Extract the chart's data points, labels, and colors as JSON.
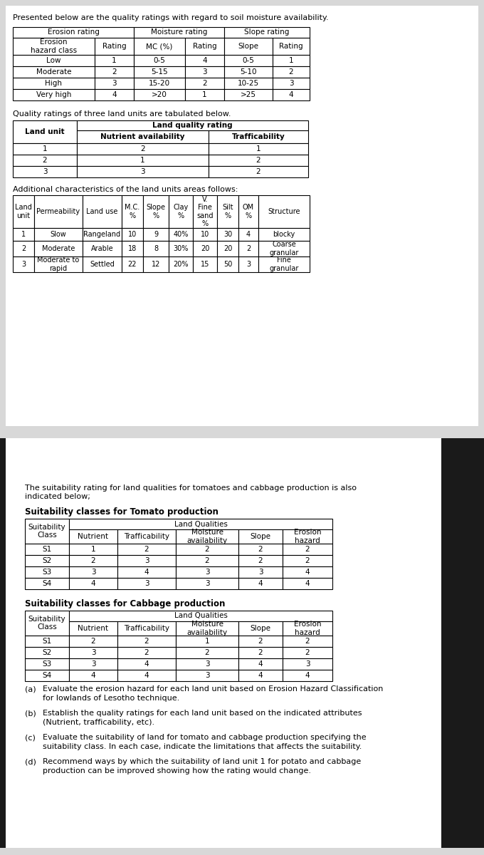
{
  "intro_text": "Presented below are the quality ratings with regard to soil moisture availability.",
  "table1_rows": [
    [
      "Low",
      "1",
      "0-5",
      "4",
      "0-5",
      "1"
    ],
    [
      "Moderate",
      "2",
      "5-15",
      "3",
      "5-10",
      "2"
    ],
    [
      "High",
      "3",
      "15-20",
      "2",
      "10-25",
      "3"
    ],
    [
      "Very high",
      "4",
      ">20",
      "1",
      ">25",
      "4"
    ]
  ],
  "table2_intro": "Quality ratings of three land units are tabulated below.",
  "table2_rows": [
    [
      "1",
      "2",
      "1"
    ],
    [
      "2",
      "1",
      "2"
    ],
    [
      "3",
      "3",
      "2"
    ]
  ],
  "table3_intro": "Additional characteristics of the land units areas follows:",
  "table3_header": [
    "Land\nunit",
    "Permeability",
    "Land use",
    "M.C.\n%",
    "Slope\n%",
    "Clay\n%",
    "V.\nFine\nsand\n%",
    "Silt\n%",
    "OM\n%",
    "Structure"
  ],
  "table3_rows": [
    [
      "1",
      "Slow",
      "Rangeland",
      "10",
      "9",
      "40%",
      "10",
      "30",
      "4",
      "blocky"
    ],
    [
      "2",
      "Moderate",
      "Arable",
      "18",
      "8",
      "30%",
      "20",
      "20",
      "2",
      "Coarse\ngranular"
    ],
    [
      "3",
      "Moderate to\nrapid",
      "Settled",
      "22",
      "12",
      "20%",
      "15",
      "50",
      "3",
      "Fine\ngranular"
    ]
  ],
  "page2_intro": "The suitability rating for land qualities for tomatoes and cabbage production is also\nindicated below;",
  "tomato_title": "Suitability classes for Tomato production",
  "tomato_rows": [
    [
      "S1",
      "1",
      "2",
      "2",
      "2",
      "2"
    ],
    [
      "S2",
      "2",
      "3",
      "2",
      "2",
      "2"
    ],
    [
      "S3",
      "3",
      "4",
      "3",
      "3",
      "4"
    ],
    [
      "S4",
      "4",
      "3",
      "3",
      "4",
      "4"
    ]
  ],
  "cabbage_title": "Suitability classes for Cabbage production",
  "cabbage_rows": [
    [
      "S1",
      "2",
      "2",
      "1",
      "2",
      "2"
    ],
    [
      "S2",
      "3",
      "2",
      "2",
      "2",
      "2"
    ],
    [
      "S3",
      "3",
      "4",
      "3",
      "4",
      "3"
    ],
    [
      "S4",
      "4",
      "4",
      "3",
      "4",
      "4"
    ]
  ],
  "questions": [
    [
      "(a)",
      "Evaluate the erosion hazard for each land unit based on Erosion Hazard Classification\nfor lowlands of Lesotho technique."
    ],
    [
      "(b)",
      "Establish the quality ratings for each land unit based on the indicated attributes\n(Nutrient, trafficability, etc)."
    ],
    [
      "(c)",
      "Evaluate the suitability of land for tomato and cabbage production specifying the\nsuitability class. In each case, indicate the limitations that affects the suitability."
    ],
    [
      "(d)",
      "Recommend ways by which the suitability of land unit 1 for potato and cabbage\nproduction can be improved showing how the rating would change."
    ]
  ],
  "bg_color": "#d8d8d8",
  "font_size": 7.5
}
